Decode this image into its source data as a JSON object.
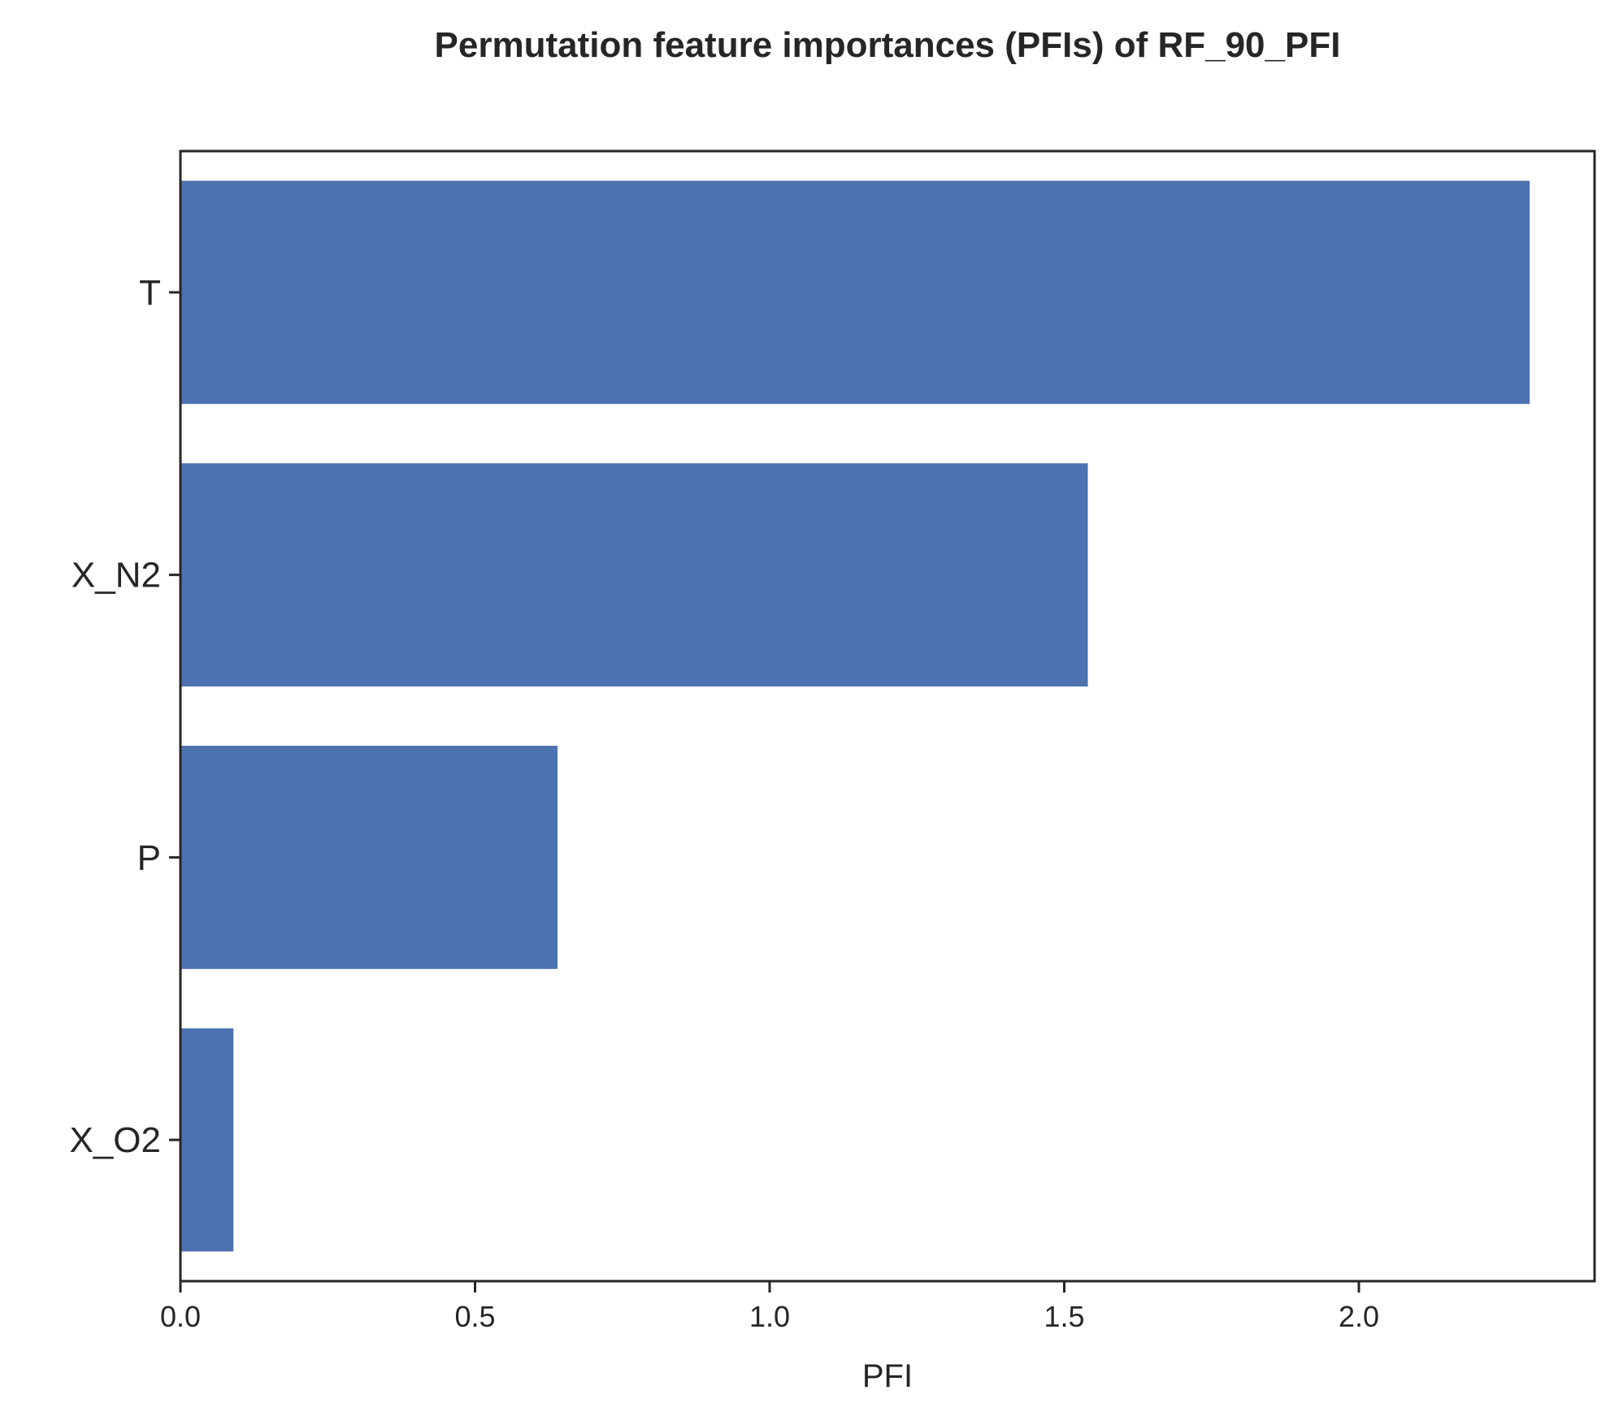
{
  "chart_data": {
    "type": "bar",
    "orientation": "horizontal",
    "title": "Permutation feature importances (PFIs) of RF_90_PFI",
    "xlabel": "PFI",
    "ylabel": "",
    "categories": [
      "T",
      "X_N2",
      "P",
      "X_O2"
    ],
    "values": [
      2.29,
      1.54,
      0.64,
      0.09
    ],
    "xlim": [
      0.0,
      2.4
    ],
    "x_ticks": [
      0.0,
      0.5,
      1.0,
      1.5,
      2.0
    ],
    "x_tick_labels": [
      "0.0",
      "0.5",
      "1.0",
      "1.5",
      "2.0"
    ],
    "grid": false,
    "legend": "none",
    "bar_color": "#4c72b0",
    "axis_color": "#262626"
  }
}
